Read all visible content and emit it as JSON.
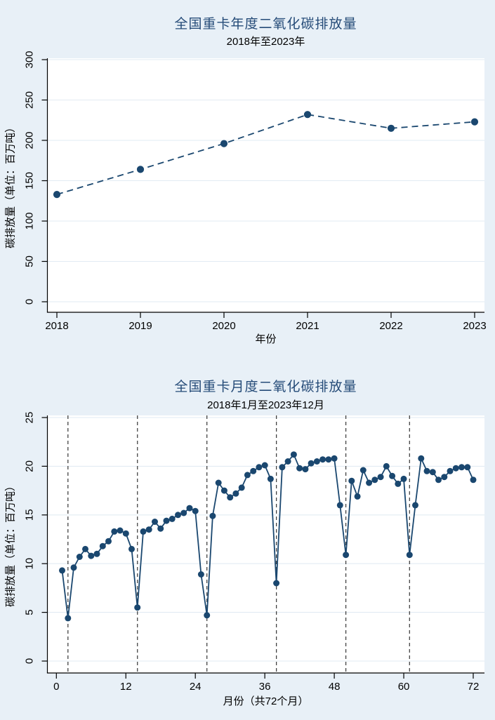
{
  "style": {
    "page_bg": "#e8f0f7",
    "plot_bg": "#ffffff",
    "series_color": "#1a476f",
    "grid_color": "#e2ebf3",
    "vline_color": "#3d3d3d",
    "axis_color": "#000000",
    "title_color": "#254b78",
    "text_color": "#000000"
  },
  "chart_data": [
    {
      "type": "line",
      "title": "全国重卡年度二氧化碳排放量",
      "subtitle": "2018年至2023年",
      "xlabel": "年份",
      "ylabel": "碳排放量（单位：百万吨）",
      "line_style": "dashed",
      "marker": "circle",
      "grid": "horizontal",
      "legend": "none",
      "xlim": [
        2018,
        2023
      ],
      "ylim": [
        0,
        300
      ],
      "xticks": [
        2018,
        2019,
        2020,
        2021,
        2022,
        2023
      ],
      "yticks": [
        0,
        50,
        100,
        150,
        200,
        250,
        300
      ],
      "x": [
        2018,
        2019,
        2020,
        2021,
        2022,
        2023
      ],
      "values": [
        133,
        164,
        196,
        232,
        215,
        223
      ]
    },
    {
      "type": "line",
      "title": "全国重卡月度二氧化碳排放量",
      "subtitle": "2018年1月至2023年12月",
      "xlabel": "月份（共72个月）",
      "ylabel": "碳排放量（单位：百万吨）",
      "line_style": "solid",
      "marker": "circle",
      "grid": "horizontal",
      "legend": "none",
      "xlim": [
        0,
        72
      ],
      "ylim": [
        0,
        25
      ],
      "xticks": [
        0,
        12,
        24,
        36,
        48,
        60,
        72
      ],
      "yticks": [
        0,
        5,
        10,
        15,
        20,
        25
      ],
      "vlines": [
        2,
        14,
        26,
        38,
        50,
        61
      ],
      "x": [
        1,
        2,
        3,
        4,
        5,
        6,
        7,
        8,
        9,
        10,
        11,
        12,
        13,
        14,
        15,
        16,
        17,
        18,
        19,
        20,
        21,
        22,
        23,
        24,
        25,
        26,
        27,
        28,
        29,
        30,
        31,
        32,
        33,
        34,
        35,
        36,
        37,
        38,
        39,
        40,
        41,
        42,
        43,
        44,
        45,
        46,
        47,
        48,
        49,
        50,
        51,
        52,
        53,
        54,
        55,
        56,
        57,
        58,
        59,
        60,
        61,
        62,
        63,
        64,
        65,
        66,
        67,
        68,
        69,
        70,
        71,
        72
      ],
      "values": [
        9.3,
        4.4,
        9.6,
        10.7,
        11.5,
        10.8,
        11.0,
        11.8,
        12.3,
        13.3,
        13.4,
        13.1,
        11.5,
        5.5,
        13.3,
        13.5,
        14.3,
        13.6,
        14.4,
        14.6,
        15.0,
        15.2,
        15.7,
        15.4,
        8.9,
        4.7,
        14.9,
        18.3,
        17.5,
        16.8,
        17.2,
        17.8,
        19.1,
        19.5,
        19.9,
        20.1,
        18.7,
        8.0,
        19.9,
        20.5,
        21.2,
        19.8,
        19.7,
        20.3,
        20.5,
        20.7,
        20.7,
        20.8,
        16.0,
        10.9,
        18.5,
        16.9,
        19.6,
        18.3,
        18.6,
        18.9,
        20.0,
        19.0,
        18.2,
        18.7,
        10.9,
        16.0,
        20.8,
        19.5,
        19.4,
        18.6,
        18.9,
        19.5,
        19.8,
        19.9,
        19.9,
        18.6
      ]
    }
  ]
}
